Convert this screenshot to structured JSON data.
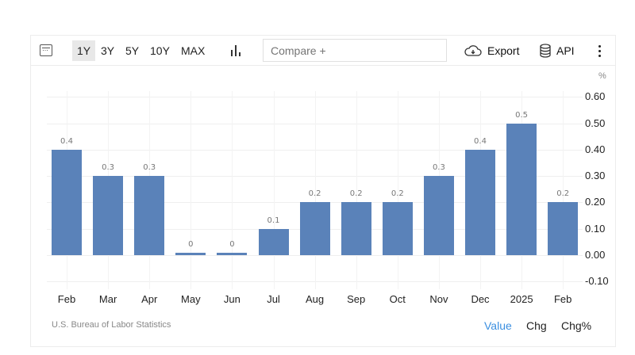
{
  "toolbar": {
    "ranges": [
      "1Y",
      "3Y",
      "5Y",
      "10Y",
      "MAX"
    ],
    "active_range": "1Y",
    "compare_placeholder": "Compare +",
    "export_label": "Export",
    "api_label": "API"
  },
  "chart_meta": {
    "unit": "%",
    "source": "U.S. Bureau of Labor Statistics",
    "modes": [
      "Value",
      "Chg",
      "Chg%"
    ],
    "active_mode": "Value",
    "bar_color": "#5a82b9",
    "accent_color": "#3b8fe0"
  },
  "chart_data": {
    "type": "bar",
    "title": "",
    "xlabel": "",
    "ylabel": "%",
    "categories": [
      "Feb",
      "Mar",
      "Apr",
      "May",
      "Jun",
      "Jul",
      "Aug",
      "Sep",
      "Oct",
      "Nov",
      "Dec",
      "2025",
      "Feb"
    ],
    "values": [
      0.4,
      0.3,
      0.3,
      0,
      0,
      0.1,
      0.2,
      0.2,
      0.2,
      0.3,
      0.4,
      0.5,
      0.2
    ],
    "value_labels": [
      "0.4",
      "0.3",
      "0.3",
      "0",
      "0",
      "0.1",
      "0.2",
      "0.2",
      "0.2",
      "0.3",
      "0.4",
      "0.5",
      "0.2"
    ],
    "ylim": [
      -0.1,
      0.6
    ],
    "yticks": [
      "0.60",
      "0.50",
      "0.40",
      "0.30",
      "0.20",
      "0.10",
      "0.00",
      "-0.10"
    ],
    "grid": true,
    "y_axis_position": "right",
    "legend": null
  }
}
